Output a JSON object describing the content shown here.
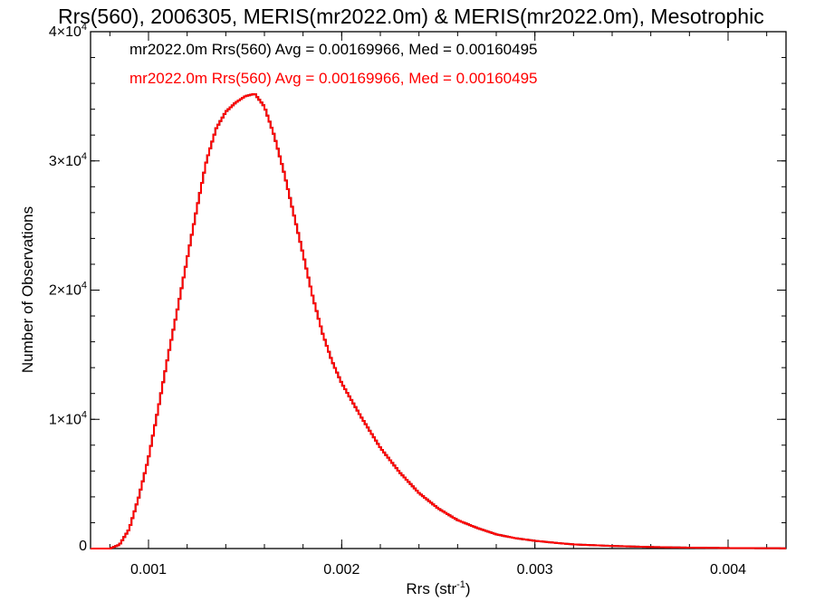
{
  "chart_data": {
    "type": "line",
    "title": "Rrs(560), 2006305, MERIS(mr2022.0m) & MERIS(mr2022.0m), Mesotrophic",
    "xlabel_base": "Rrs (str",
    "xlabel_sup": "-1",
    "xlabel_close": ")",
    "ylabel": "Number of Observations",
    "xlim": [
      0.0007,
      0.0043
    ],
    "ylim": [
      0,
      40000
    ],
    "x_ticks": [
      {
        "value": 0.001,
        "label": "0.001"
      },
      {
        "value": 0.002,
        "label": "0.002"
      },
      {
        "value": 0.003,
        "label": "0.003"
      },
      {
        "value": 0.004,
        "label": "0.004"
      }
    ],
    "y_ticks": [
      {
        "value": 0,
        "label": "0",
        "mantissa": "",
        "exp": ""
      },
      {
        "value": 10000,
        "label": "",
        "mantissa": "1×10",
        "exp": "4"
      },
      {
        "value": 20000,
        "label": "",
        "mantissa": "2×10",
        "exp": "4"
      },
      {
        "value": 30000,
        "label": "",
        "mantissa": "3×10",
        "exp": "4"
      },
      {
        "value": 40000,
        "label": "",
        "mantissa": "4×10",
        "exp": "4"
      }
    ],
    "grid": false,
    "legend_position": "top-left",
    "annotations": [
      {
        "text": "mr2022.0m Rrs(560) Avg = 0.00169966, Med = 0.00160495",
        "color": "#000000"
      },
      {
        "text": "mr2022.0m Rrs(560) Avg = 0.00169966, Med = 0.00160495",
        "color": "#ff0000"
      }
    ],
    "series": [
      {
        "color": "#000000",
        "x": [
          0.0007,
          0.0008,
          0.00085,
          0.0009,
          0.00095,
          0.001,
          0.00105,
          0.0011,
          0.00115,
          0.0012,
          0.00125,
          0.0013,
          0.00135,
          0.0014,
          0.00145,
          0.0015,
          0.00155,
          0.0016,
          0.00165,
          0.0017,
          0.00175,
          0.0018,
          0.00185,
          0.0019,
          0.00195,
          0.002,
          0.0021,
          0.0022,
          0.0023,
          0.0024,
          0.0025,
          0.0026,
          0.0027,
          0.0028,
          0.0029,
          0.003,
          0.0031,
          0.0032,
          0.0034,
          0.0036,
          0.0038,
          0.004,
          0.0043
        ],
        "y": [
          0,
          0,
          300,
          1500,
          4000,
          7000,
          10800,
          14800,
          18500,
          22400,
          26300,
          30000,
          32500,
          33800,
          34500,
          35000,
          35200,
          34200,
          32000,
          29200,
          26000,
          22800,
          19500,
          16700,
          14500,
          12800,
          10200,
          7800,
          5900,
          4300,
          3100,
          2200,
          1600,
          1100,
          800,
          600,
          450,
          320,
          200,
          120,
          70,
          40,
          20
        ]
      },
      {
        "color": "#ff0000",
        "x": [
          0.0007,
          0.0008,
          0.00085,
          0.0009,
          0.00095,
          0.001,
          0.00105,
          0.0011,
          0.00115,
          0.0012,
          0.00125,
          0.0013,
          0.00135,
          0.0014,
          0.00145,
          0.0015,
          0.00155,
          0.0016,
          0.00165,
          0.0017,
          0.00175,
          0.0018,
          0.00185,
          0.0019,
          0.00195,
          0.002,
          0.0021,
          0.0022,
          0.0023,
          0.0024,
          0.0025,
          0.0026,
          0.0027,
          0.0028,
          0.0029,
          0.003,
          0.0031,
          0.0032,
          0.0034,
          0.0036,
          0.0038,
          0.004,
          0.0043
        ],
        "y": [
          0,
          0,
          300,
          1500,
          4000,
          7000,
          10800,
          14800,
          18500,
          22400,
          26300,
          30000,
          32500,
          33800,
          34500,
          35000,
          35200,
          34200,
          32000,
          29200,
          26000,
          22800,
          19500,
          16700,
          14500,
          12800,
          10200,
          7800,
          5900,
          4300,
          3100,
          2200,
          1600,
          1100,
          800,
          600,
          450,
          320,
          200,
          120,
          70,
          40,
          20
        ]
      }
    ]
  }
}
